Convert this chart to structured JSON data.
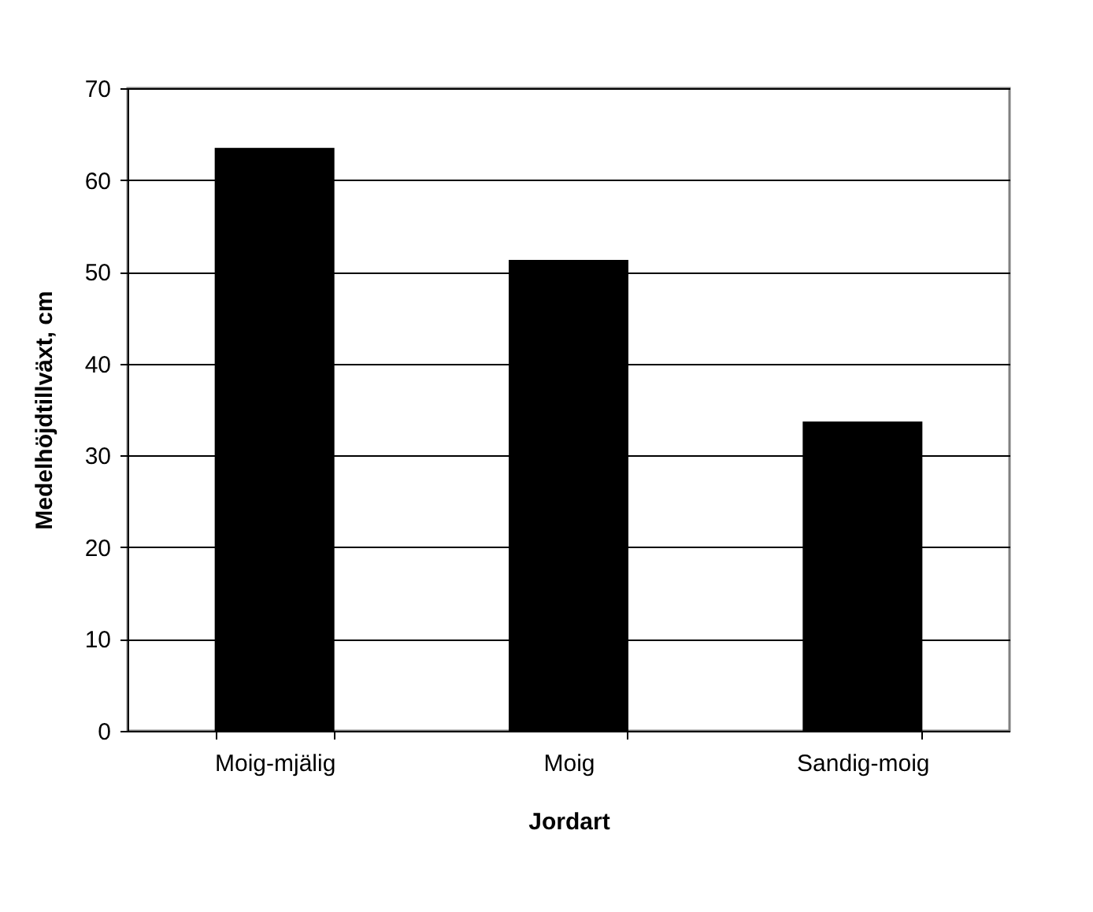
{
  "chart_data": {
    "type": "bar",
    "xlabel": "Jordart",
    "ylabel": "Medelhöjdtillväxt, cm",
    "categories": [
      "Moig-mjälig",
      "Moig",
      "Sandig-moig"
    ],
    "values": [
      63.5,
      51.3,
      33.7
    ],
    "color": "#000000",
    "ylim": [
      0,
      70
    ],
    "yticks": [
      0,
      10,
      20,
      30,
      40,
      50,
      60,
      70
    ],
    "grid": "y"
  }
}
